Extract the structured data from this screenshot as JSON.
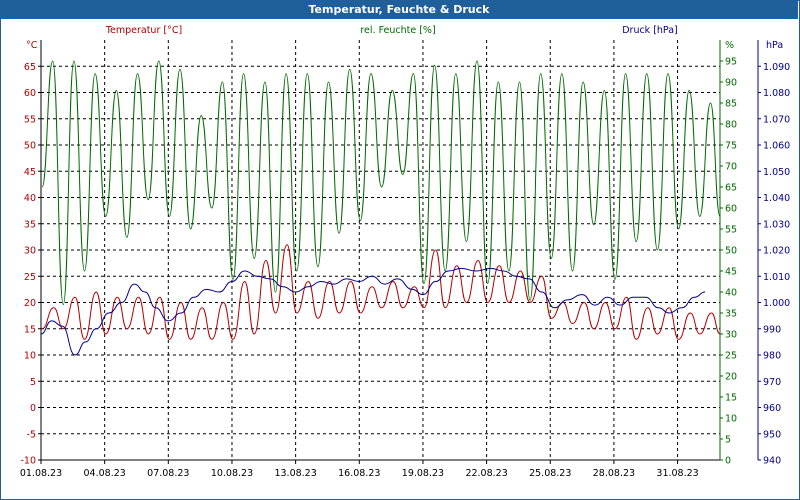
{
  "title": "Temperatur, Feuchte & Druck",
  "colors": {
    "temperature": "#b00000",
    "humidity": "#006a00",
    "pressure": "#00008b",
    "frame": "#1f5f9a",
    "grid": "#000000"
  },
  "chart_data": {
    "type": "line",
    "title": "Temperatur, Feuchte & Druck",
    "x_tick_labels": [
      "01.08.23",
      "04.08.23",
      "07.08.23",
      "10.08.23",
      "13.08.23",
      "16.08.23",
      "19.08.23",
      "22.08.23",
      "25.08.23",
      "28.08.23",
      "31.08.23"
    ],
    "x_tick_days": [
      1,
      4,
      7,
      10,
      13,
      16,
      19,
      22,
      25,
      28,
      31
    ],
    "x_range_days": [
      1,
      33
    ],
    "grid": true,
    "axes": {
      "left": {
        "unit": "°C",
        "series_label": "Temperatur [°C]",
        "range": [
          -10,
          70
        ],
        "ticks": [
          "-10",
          "-5",
          "0",
          "5",
          "10",
          "15",
          "20",
          "25",
          "30",
          "35",
          "40",
          "45",
          "50",
          "55",
          "60",
          "65"
        ]
      },
      "right1": {
        "unit": "%",
        "series_label": "rel. Feuchte [%]",
        "range": [
          0,
          100
        ],
        "ticks": [
          "0",
          "5",
          "10",
          "15",
          "20",
          "25",
          "30",
          "35",
          "40",
          "45",
          "50",
          "55",
          "60",
          "65",
          "70",
          "75",
          "80",
          "85",
          "90",
          "95"
        ]
      },
      "right2": {
        "unit": "hPa",
        "series_label": "Druck [hPa]",
        "range": [
          940,
          1100
        ],
        "ticks": [
          "940",
          "950",
          "960",
          "970",
          "980",
          "990",
          "1.000",
          "1.010",
          "1.020",
          "1.030",
          "1.040",
          "1.050",
          "1.060",
          "1.070",
          "1.080",
          "1.090"
        ]
      }
    },
    "series": [
      {
        "name": "Temperatur [°C]",
        "axis": "left",
        "day_min": [
          15,
          15,
          13,
          14,
          15,
          14,
          13,
          13,
          13,
          13,
          14,
          18,
          18,
          17,
          18,
          18,
          19,
          19,
          19,
          19,
          20,
          20,
          20,
          20,
          17,
          16,
          15,
          15,
          13,
          14,
          13,
          14
        ],
        "day_max": [
          19,
          21,
          22,
          21,
          21,
          21,
          20,
          19,
          20,
          24,
          28,
          31,
          24,
          24,
          24,
          23,
          24,
          23,
          30,
          27,
          28,
          27,
          26,
          25,
          20,
          20,
          20,
          21,
          19,
          19,
          18,
          18
        ]
      },
      {
        "name": "rel. Feuchte [%]",
        "axis": "right1",
        "day_min": [
          65,
          37,
          45,
          58,
          53,
          62,
          58,
          55,
          60,
          43,
          48,
          40,
          45,
          46,
          54,
          57,
          65,
          68,
          42,
          45,
          52,
          42,
          45,
          38,
          48,
          45,
          56,
          43,
          52,
          50,
          55,
          58
        ],
        "day_max": [
          95,
          95,
          92,
          88,
          92,
          95,
          93,
          82,
          90,
          92,
          90,
          92,
          92,
          90,
          93,
          92,
          88,
          92,
          94,
          92,
          95,
          90,
          90,
          92,
          92,
          90,
          88,
          92,
          92,
          92,
          88,
          85
        ]
      },
      {
        "name": "Druck [hPa]",
        "axis": "right2",
        "points": [
          [
            1,
            988
          ],
          [
            1.5,
            993
          ],
          [
            2,
            991
          ],
          [
            2.6,
            980
          ],
          [
            3.1,
            985
          ],
          [
            3.6,
            990
          ],
          [
            4.2,
            996
          ],
          [
            4.8,
            1000
          ],
          [
            5.4,
            1007
          ],
          [
            5.9,
            1004
          ],
          [
            6.4,
            998
          ],
          [
            7,
            993
          ],
          [
            7.6,
            996
          ],
          [
            8.2,
            1002
          ],
          [
            8.8,
            1005
          ],
          [
            9.4,
            1004
          ],
          [
            10,
            1008
          ],
          [
            10.6,
            1012
          ],
          [
            11.2,
            1010
          ],
          [
            11.8,
            1009
          ],
          [
            12.4,
            1006
          ],
          [
            13,
            1004
          ],
          [
            13.6,
            1006
          ],
          [
            14.2,
            1008
          ],
          [
            14.8,
            1007
          ],
          [
            15.4,
            1009
          ],
          [
            16,
            1008
          ],
          [
            16.6,
            1010
          ],
          [
            17.2,
            1007
          ],
          [
            17.8,
            1009
          ],
          [
            18.5,
            1005
          ],
          [
            19,
            1003
          ],
          [
            19.6,
            1008
          ],
          [
            20.2,
            1012
          ],
          [
            20.8,
            1013
          ],
          [
            21.5,
            1012
          ],
          [
            22.2,
            1013
          ],
          [
            22.8,
            1012
          ],
          [
            23.4,
            1010
          ],
          [
            24,
            1009
          ],
          [
            24.6,
            1004
          ],
          [
            25.2,
            998
          ],
          [
            25.8,
            1001
          ],
          [
            26.5,
            1003
          ],
          [
            27.1,
            999
          ],
          [
            27.7,
            1002
          ],
          [
            28.3,
            999
          ],
          [
            28.9,
            1002
          ],
          [
            29.5,
            1002
          ],
          [
            30.1,
            998
          ],
          [
            30.6,
            996
          ],
          [
            31.2,
            998
          ],
          [
            31.8,
            1002
          ],
          [
            32.3,
            1004
          ]
        ]
      }
    ]
  }
}
